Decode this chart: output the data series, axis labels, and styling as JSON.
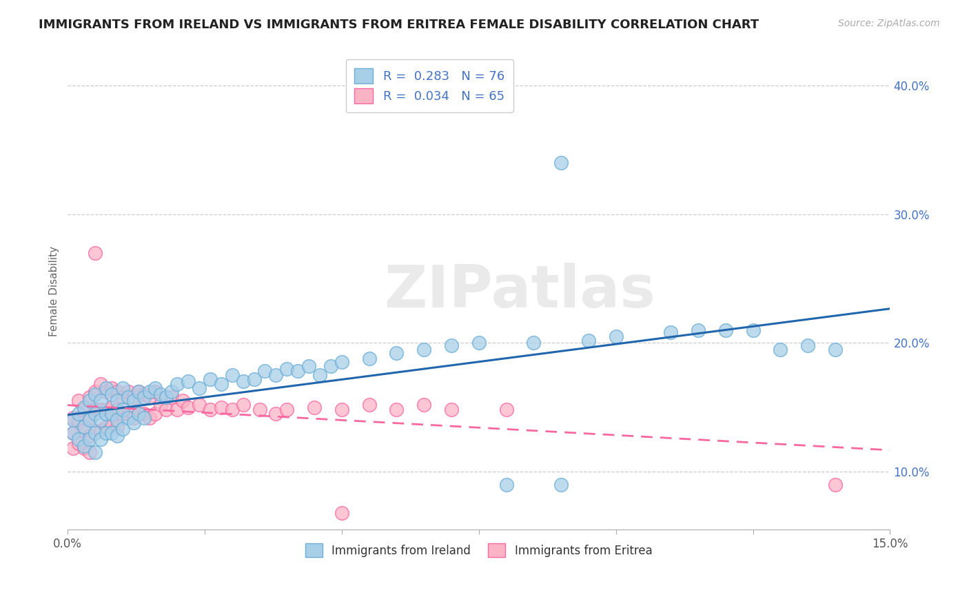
{
  "title": "IMMIGRANTS FROM IRELAND VS IMMIGRANTS FROM ERITREA FEMALE DISABILITY CORRELATION CHART",
  "source": "Source: ZipAtlas.com",
  "ylabel": "Female Disability",
  "xlim": [
    0.0,
    0.15
  ],
  "ylim": [
    0.055,
    0.425
  ],
  "yticks": [
    0.1,
    0.2,
    0.3,
    0.4
  ],
  "ytick_labels": [
    "10.0%",
    "20.0%",
    "30.0%",
    "40.0%"
  ],
  "xticks": [
    0.0,
    0.025,
    0.05,
    0.075,
    0.1,
    0.125,
    0.15
  ],
  "xtick_labels": [
    "0.0%",
    "",
    "",
    "",
    "",
    "",
    "15.0%"
  ],
  "ireland_color": "#a8cfe8",
  "ireland_edge": "#6baed6",
  "eritrea_color": "#fbb4c6",
  "eritrea_edge": "#f768a1",
  "ireland_R": 0.283,
  "ireland_N": 76,
  "eritrea_R": 0.034,
  "eritrea_N": 65,
  "ireland_line_color": "#2166ac",
  "eritrea_line_color": "#f768a1",
  "watermark": "ZIPatlas",
  "background_color": "#ffffff",
  "ireland_x": [
    0.001,
    0.001,
    0.002,
    0.002,
    0.003,
    0.003,
    0.003,
    0.004,
    0.004,
    0.004,
    0.005,
    0.005,
    0.005,
    0.005,
    0.006,
    0.006,
    0.006,
    0.007,
    0.007,
    0.007,
    0.008,
    0.008,
    0.008,
    0.009,
    0.009,
    0.009,
    0.01,
    0.01,
    0.01,
    0.011,
    0.011,
    0.012,
    0.012,
    0.013,
    0.013,
    0.014,
    0.014,
    0.015,
    0.016,
    0.017,
    0.018,
    0.019,
    0.02,
    0.022,
    0.024,
    0.026,
    0.028,
    0.03,
    0.032,
    0.034,
    0.036,
    0.038,
    0.04,
    0.042,
    0.044,
    0.046,
    0.048,
    0.05,
    0.055,
    0.06,
    0.065,
    0.07,
    0.075,
    0.08,
    0.085,
    0.09,
    0.095,
    0.09,
    0.1,
    0.11,
    0.115,
    0.12,
    0.125,
    0.13,
    0.135,
    0.14
  ],
  "ireland_y": [
    0.14,
    0.13,
    0.145,
    0.125,
    0.15,
    0.135,
    0.12,
    0.155,
    0.14,
    0.125,
    0.16,
    0.145,
    0.13,
    0.115,
    0.155,
    0.14,
    0.125,
    0.165,
    0.145,
    0.13,
    0.16,
    0.145,
    0.13,
    0.155,
    0.14,
    0.128,
    0.165,
    0.148,
    0.133,
    0.158,
    0.142,
    0.155,
    0.138,
    0.162,
    0.145,
    0.158,
    0.142,
    0.162,
    0.165,
    0.16,
    0.158,
    0.162,
    0.168,
    0.17,
    0.165,
    0.172,
    0.168,
    0.175,
    0.17,
    0.172,
    0.178,
    0.175,
    0.18,
    0.178,
    0.182,
    0.175,
    0.182,
    0.185,
    0.188,
    0.192,
    0.195,
    0.198,
    0.2,
    0.09,
    0.2,
    0.34,
    0.202,
    0.09,
    0.205,
    0.208,
    0.21,
    0.21,
    0.21,
    0.195,
    0.198,
    0.195
  ],
  "eritrea_x": [
    0.001,
    0.001,
    0.001,
    0.002,
    0.002,
    0.002,
    0.003,
    0.003,
    0.003,
    0.004,
    0.004,
    0.004,
    0.004,
    0.005,
    0.005,
    0.005,
    0.006,
    0.006,
    0.006,
    0.007,
    0.007,
    0.007,
    0.008,
    0.008,
    0.008,
    0.009,
    0.009,
    0.009,
    0.01,
    0.01,
    0.011,
    0.011,
    0.012,
    0.012,
    0.013,
    0.013,
    0.014,
    0.014,
    0.015,
    0.015,
    0.016,
    0.016,
    0.017,
    0.018,
    0.019,
    0.02,
    0.021,
    0.022,
    0.024,
    0.026,
    0.028,
    0.03,
    0.032,
    0.035,
    0.038,
    0.04,
    0.045,
    0.05,
    0.055,
    0.06,
    0.065,
    0.07,
    0.08,
    0.05,
    0.14
  ],
  "eritrea_y": [
    0.142,
    0.13,
    0.118,
    0.155,
    0.138,
    0.122,
    0.148,
    0.132,
    0.118,
    0.158,
    0.142,
    0.128,
    0.115,
    0.27,
    0.162,
    0.148,
    0.168,
    0.148,
    0.132,
    0.162,
    0.148,
    0.135,
    0.165,
    0.15,
    0.138,
    0.162,
    0.148,
    0.135,
    0.158,
    0.145,
    0.162,
    0.145,
    0.158,
    0.142,
    0.162,
    0.145,
    0.16,
    0.145,
    0.158,
    0.142,
    0.162,
    0.145,
    0.152,
    0.148,
    0.158,
    0.148,
    0.155,
    0.15,
    0.152,
    0.148,
    0.15,
    0.148,
    0.152,
    0.148,
    0.145,
    0.148,
    0.15,
    0.148,
    0.152,
    0.148,
    0.152,
    0.148,
    0.148,
    0.068,
    0.09
  ]
}
